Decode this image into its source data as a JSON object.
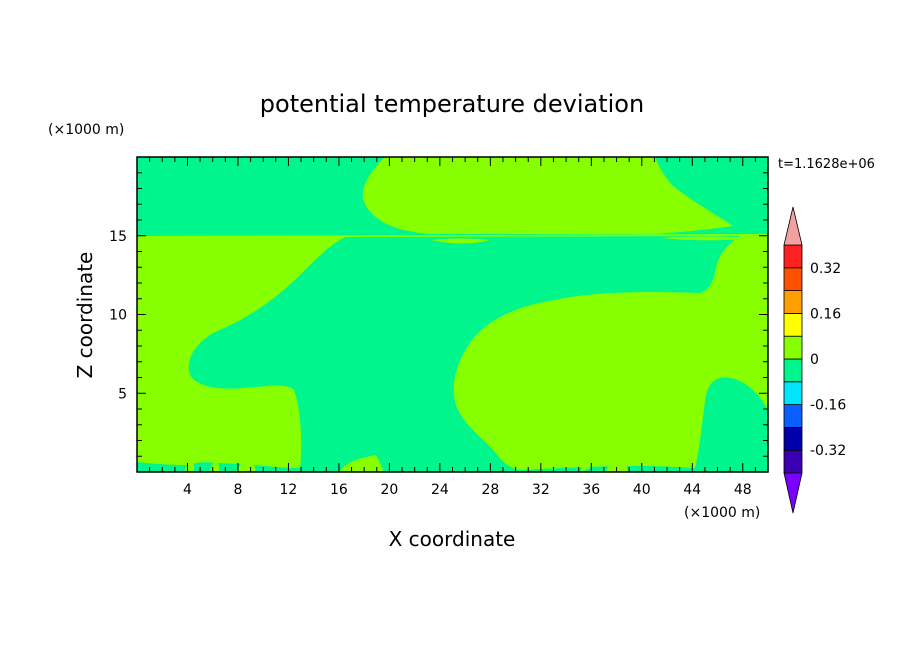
{
  "chart_data": {
    "type": "contour",
    "title": "potential temperature deviation",
    "xlabel": "X coordinate",
    "ylabel": "Z coordinate",
    "x_unit": "(×1000 m)",
    "y_unit": "(×1000 m)",
    "time_label": "t=1.1628e+06",
    "xlim": [
      0,
      50
    ],
    "ylim": [
      0,
      20
    ],
    "x_ticks": [
      4,
      8,
      12,
      16,
      20,
      24,
      28,
      32,
      36,
      40,
      44,
      48
    ],
    "y_ticks": [
      5,
      10,
      15
    ],
    "x_tick_labels": [
      "4",
      "8",
      "12",
      "16",
      "20",
      "24",
      "28",
      "32",
      "36",
      "40",
      "44",
      "48"
    ],
    "y_tick_labels": [
      "5",
      "10",
      "15"
    ],
    "levels": [
      -0.4,
      -0.32,
      -0.24,
      -0.16,
      -0.08,
      0,
      0.08,
      0.16,
      0.24,
      0.32,
      0.4
    ],
    "level_colors": [
      "#7b00ff",
      "#3b00b4",
      "#0000aa",
      "#0a60ff",
      "#00e6ff",
      "#00f58c",
      "#88ff00",
      "#ffff00",
      "#ffa000",
      "#ff5000",
      "#ff2020",
      "#f4a0a0"
    ],
    "colorbar_labels": [
      "0.32",
      "0.16",
      "0",
      "-0.16",
      "-0.32"
    ],
    "colorbar_label_values": [
      0.32,
      0.16,
      0,
      -0.16,
      -0.32
    ],
    "regions": [
      {
        "level_range": [
          0,
          0.08
        ],
        "color": "#88ff00",
        "description": "main positive region (background)"
      },
      {
        "level_range": [
          -0.08,
          0
        ],
        "color": "#00f58c",
        "description": "upper layer band and central plume"
      }
    ]
  }
}
